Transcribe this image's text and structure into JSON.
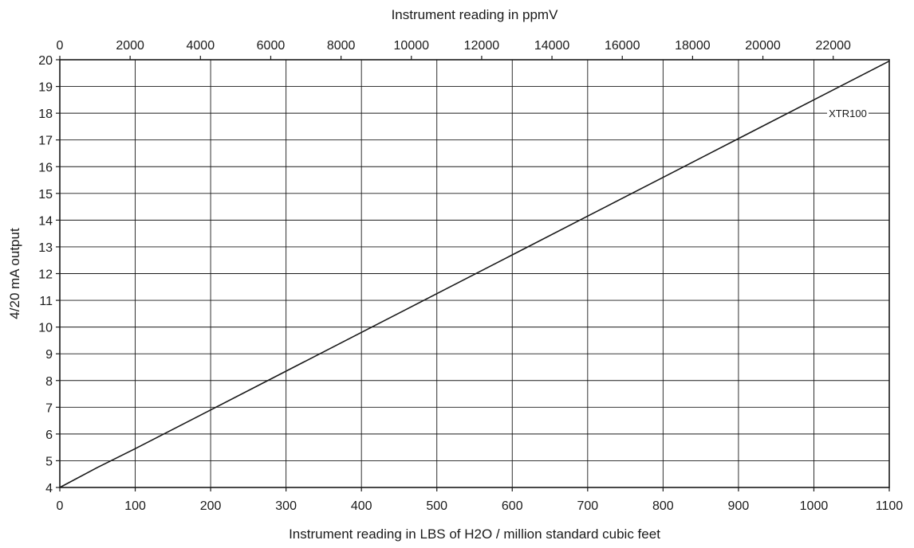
{
  "chart_data": {
    "type": "line",
    "title": "",
    "xlabel": "Instrument reading in LBS of H2O / million standard cubic feet",
    "x2label": "Instrument reading in ppmV",
    "ylabel": "4/20 mA output",
    "xlim": [
      0,
      1100
    ],
    "x2lim": [
      0,
      23595
    ],
    "ylim": [
      4,
      20
    ],
    "x_ticks": [
      0,
      100,
      200,
      300,
      400,
      500,
      600,
      700,
      800,
      900,
      1000,
      1100
    ],
    "x2_ticks": [
      0,
      2000,
      4000,
      6000,
      8000,
      10000,
      12000,
      14000,
      16000,
      18000,
      20000,
      22000
    ],
    "y_ticks": [
      4,
      5,
      6,
      7,
      8,
      9,
      10,
      11,
      12,
      13,
      14,
      15,
      16,
      17,
      18,
      19,
      20
    ],
    "grid": true,
    "legend": "none",
    "annotations": [
      {
        "text": "XTR100",
        "x": 1045,
        "y": 18
      }
    ],
    "series": [
      {
        "name": "XTR100",
        "x": [
          0,
          50,
          100,
          200,
          300,
          400,
          500,
          600,
          700,
          800,
          900,
          1000,
          1100
        ],
        "y": [
          4,
          4.75,
          5.45,
          6.9,
          8.35,
          9.8,
          11.25,
          12.7,
          14.15,
          15.6,
          17.05,
          18.5,
          19.95
        ]
      }
    ]
  }
}
